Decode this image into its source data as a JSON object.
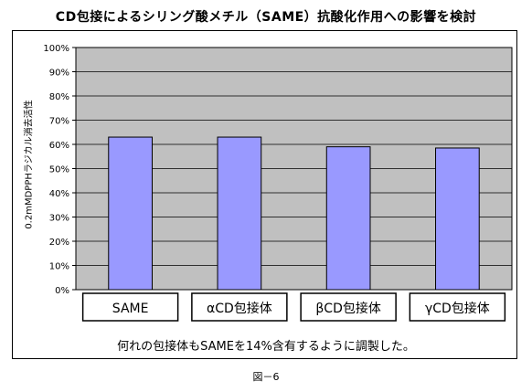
{
  "title": "CD包接によるシリング酸メチル（SAME）抗酸化作用への影響を検討",
  "note": "何れの包接体もSAMEを14%含有するように調製した。",
  "figure_caption": "図－6",
  "colors": {
    "bar_fill": "#9999ff",
    "bar_stroke": "#000000",
    "plot_bg": "#c0c0c0",
    "grid": "#000000"
  },
  "chart_data": {
    "type": "bar",
    "categories": [
      "SAME",
      "αCD包接体",
      "βCD包接体",
      "γCD包接体"
    ],
    "values": [
      63,
      63,
      59,
      58.5
    ],
    "ylabel": "0.2mMDPPHラジカル消去活性",
    "ylim": [
      0,
      100
    ],
    "yticks": [
      "0%",
      "10%",
      "20%",
      "30%",
      "40%",
      "50%",
      "60%",
      "70%",
      "80%",
      "90%",
      "100%"
    ],
    "grid": true,
    "legend": "none"
  }
}
